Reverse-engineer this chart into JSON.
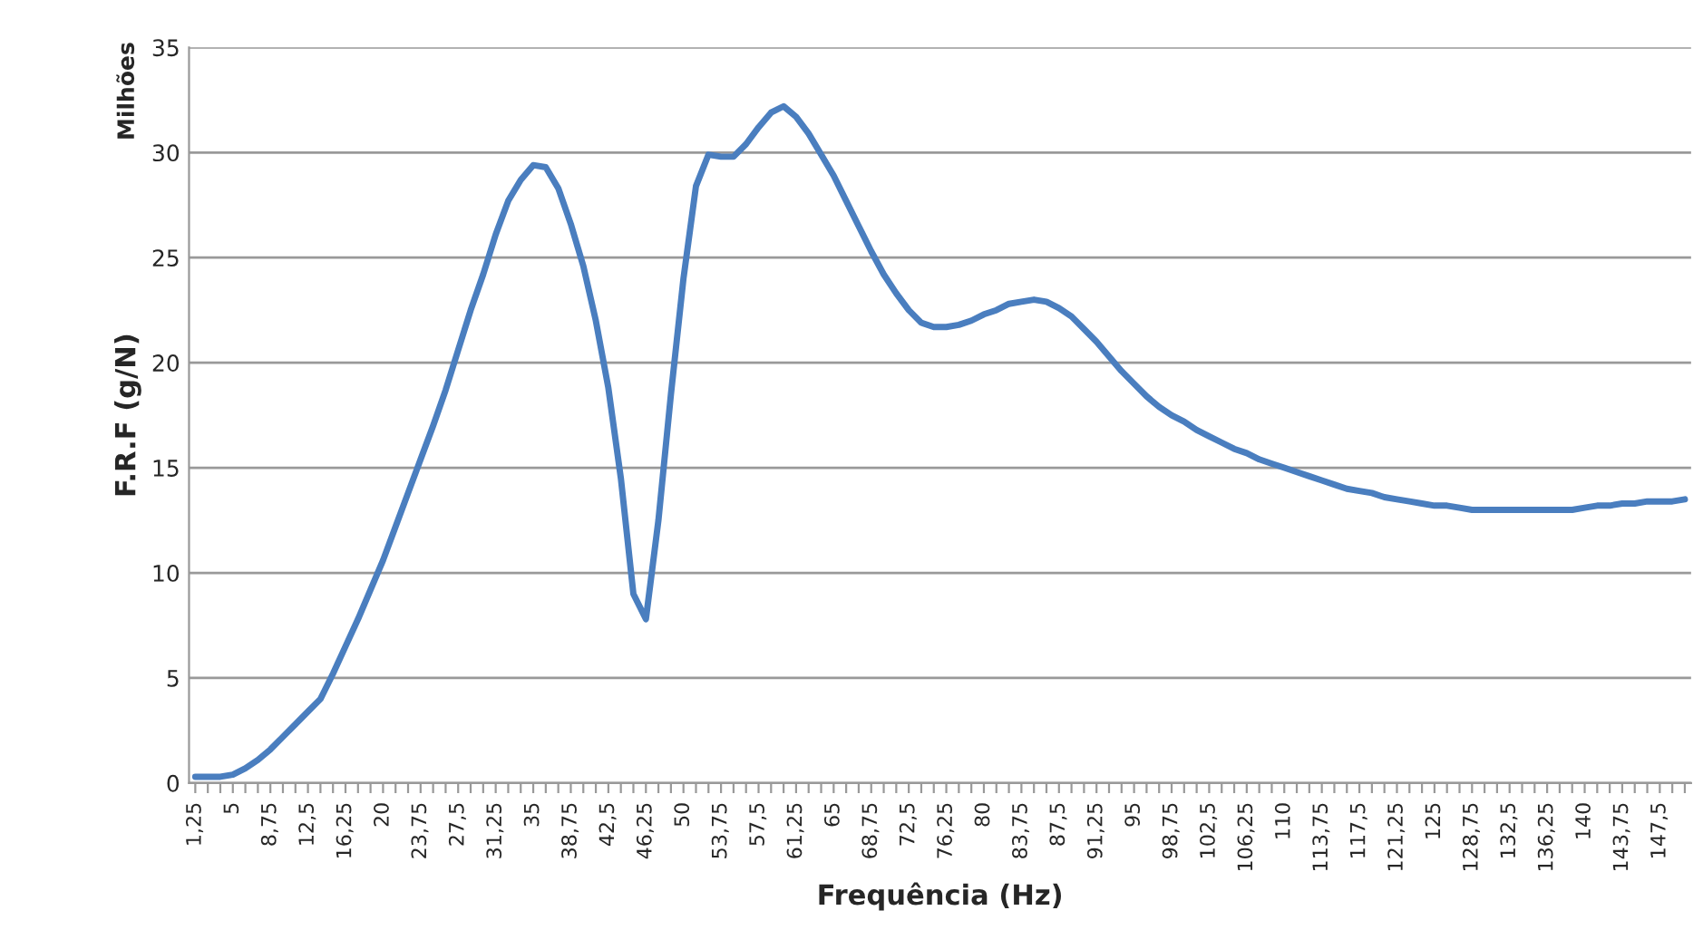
{
  "chart_data": {
    "type": "line",
    "xlabel": "Frequência (Hz)",
    "ylabel": "F.R.F (g/N)",
    "annotations": [
      "Milhões"
    ],
    "categories": [
      "1,25",
      null,
      null,
      "5",
      null,
      null,
      "8,75",
      null,
      null,
      "12,5",
      null,
      null,
      "16,25",
      null,
      null,
      "20",
      null,
      null,
      "23,75",
      null,
      null,
      "27,5",
      null,
      null,
      "31,25",
      null,
      null,
      "35",
      null,
      null,
      "38,75",
      null,
      null,
      "42,5",
      null,
      null,
      "46,25",
      null,
      null,
      "50",
      null,
      null,
      "53,75",
      null,
      null,
      "57,5",
      null,
      null,
      "61,25",
      null,
      null,
      "65",
      null,
      null,
      "68,75",
      null,
      null,
      "72,5",
      null,
      null,
      "76,25",
      null,
      null,
      "80",
      null,
      null,
      "83,75",
      null,
      null,
      "87,5",
      null,
      null,
      "91,25",
      null,
      null,
      "95",
      null,
      null,
      "98,75",
      null,
      null,
      "102,5",
      null,
      null,
      "106,25",
      null,
      null,
      "110",
      null,
      null,
      "113,75",
      null,
      null,
      "117,5",
      null,
      null,
      "121,25",
      null,
      null,
      "125",
      null,
      null,
      "128,75",
      null,
      null,
      "132,5",
      null,
      null,
      "136,25",
      null,
      null,
      "140",
      null,
      null,
      "143,75",
      null,
      null,
      "147,5",
      null,
      null
    ],
    "series": [
      {
        "color": "#4a7ebf",
        "values": [
          0.3,
          0.3,
          0.3,
          0.4,
          0.7,
          1.1,
          1.6,
          2.2,
          2.8,
          3.4,
          4.0,
          5.2,
          6.5,
          7.8,
          9.2,
          10.6,
          12.2,
          13.8,
          15.4,
          17.0,
          18.7,
          20.6,
          22.5,
          24.2,
          26.1,
          27.7,
          28.7,
          29.4,
          29.3,
          28.3,
          26.6,
          24.6,
          22.0,
          18.8,
          14.5,
          9.0,
          7.8,
          12.5,
          18.5,
          24.0,
          28.4,
          29.9,
          29.8,
          29.8,
          30.4,
          31.2,
          31.9,
          32.2,
          31.7,
          30.9,
          29.9,
          28.9,
          27.7,
          26.5,
          25.3,
          24.2,
          23.3,
          22.5,
          21.9,
          21.7,
          21.7,
          21.8,
          22.0,
          22.3,
          22.5,
          22.8,
          22.9,
          23.0,
          22.9,
          22.6,
          22.2,
          21.6,
          21.0,
          20.3,
          19.6,
          19.0,
          18.4,
          17.9,
          17.5,
          17.2,
          16.8,
          16.5,
          16.2,
          15.9,
          15.7,
          15.4,
          15.2,
          15.0,
          14.8,
          14.6,
          14.4,
          14.2,
          14.0,
          13.9,
          13.8,
          13.6,
          13.5,
          13.4,
          13.3,
          13.2,
          13.2,
          13.1,
          13.0,
          13.0,
          13.0,
          13.0,
          13.0,
          13.0,
          13.0,
          13.0,
          13.0,
          13.1,
          13.2,
          13.2,
          13.3,
          13.3,
          13.4,
          13.4,
          13.4,
          13.5
        ]
      }
    ],
    "ylim": [
      0,
      35
    ],
    "yticks": [
      0,
      5,
      10,
      15,
      20,
      25,
      30,
      35
    ],
    "grid": "y",
    "line_style": "solid",
    "marker": "none"
  }
}
